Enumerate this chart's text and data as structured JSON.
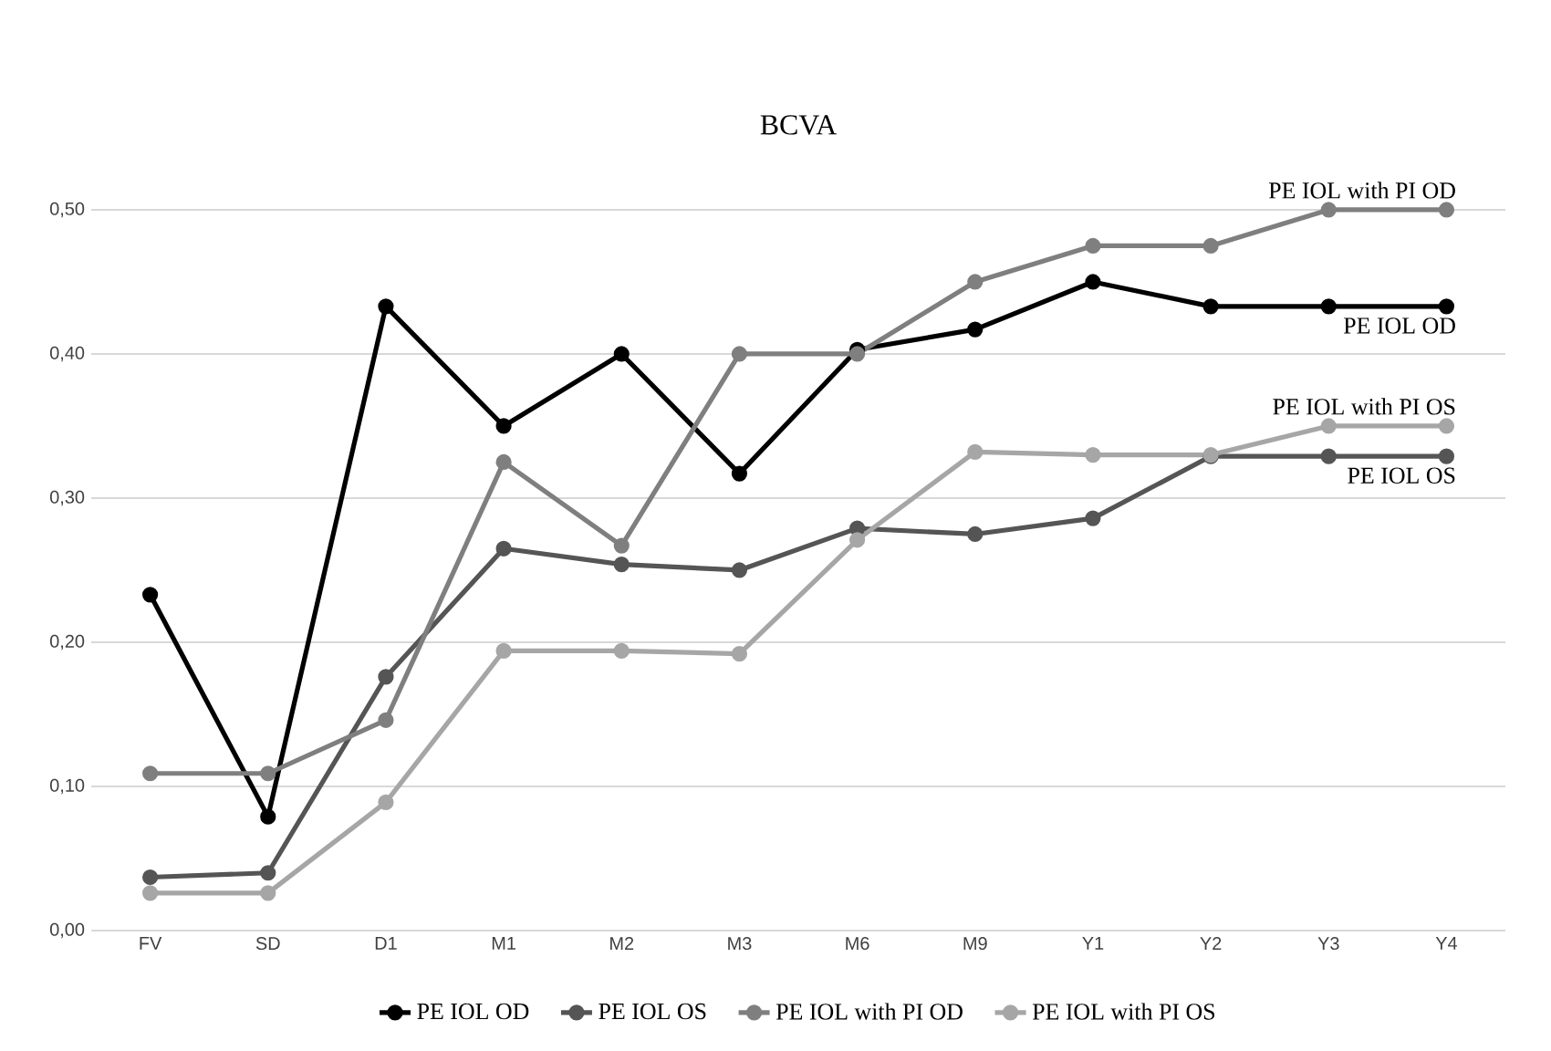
{
  "chart_data": {
    "type": "line",
    "title": "BCVA",
    "categories": [
      "FV",
      "SD",
      "D1",
      "M1",
      "M2",
      "M3",
      "M6",
      "M9",
      "Y1",
      "Y2",
      "Y3",
      "Y4"
    ],
    "series": [
      {
        "name": "PE IOL OD",
        "color": "#000000",
        "values": [
          0.233,
          0.079,
          0.433,
          0.35,
          0.4,
          0.317,
          0.403,
          0.417,
          0.45,
          0.433,
          0.433,
          0.433
        ]
      },
      {
        "name": "PE IOL OS",
        "color": "#555555",
        "values": [
          0.037,
          0.04,
          0.176,
          0.265,
          0.254,
          0.25,
          0.279,
          0.275,
          0.286,
          0.329,
          0.329,
          0.329
        ]
      },
      {
        "name": "PE IOL with PI OD",
        "color": "#7f7f7f",
        "values": [
          0.109,
          0.109,
          0.146,
          0.325,
          0.267,
          0.4,
          0.4,
          0.45,
          0.475,
          0.475,
          0.5,
          0.5
        ]
      },
      {
        "name": "PE IOL with PI OS",
        "color": "#a6a6a6",
        "values": [
          0.026,
          0.026,
          0.089,
          0.194,
          0.194,
          0.192,
          0.271,
          0.332,
          0.33,
          0.33,
          0.35,
          0.35
        ]
      }
    ],
    "ylim": [
      0,
      0.5
    ],
    "yticks": [
      {
        "value": 0,
        "label": "0,00"
      },
      {
        "value": 0.1,
        "label": "0,10"
      },
      {
        "value": 0.2,
        "label": "0,20"
      },
      {
        "value": 0.3,
        "label": "0,30"
      },
      {
        "value": 0.4,
        "label": "0,40"
      },
      {
        "value": 0.5,
        "label": "0,50"
      }
    ],
    "annotations": [
      {
        "text": "PE IOL with PI OD",
        "x": "Y4",
        "y": 0.5
      },
      {
        "text": "PE IOL OD",
        "x": "Y4",
        "y": 0.433
      },
      {
        "text": "PE IOL with PI OS",
        "x": "Y4",
        "y": 0.35
      },
      {
        "text": "PE IOL OS",
        "x": "Y4",
        "y": 0.329
      }
    ],
    "grid": "y",
    "legend": "bottom",
    "marker": "circle",
    "line_style": "solid"
  }
}
